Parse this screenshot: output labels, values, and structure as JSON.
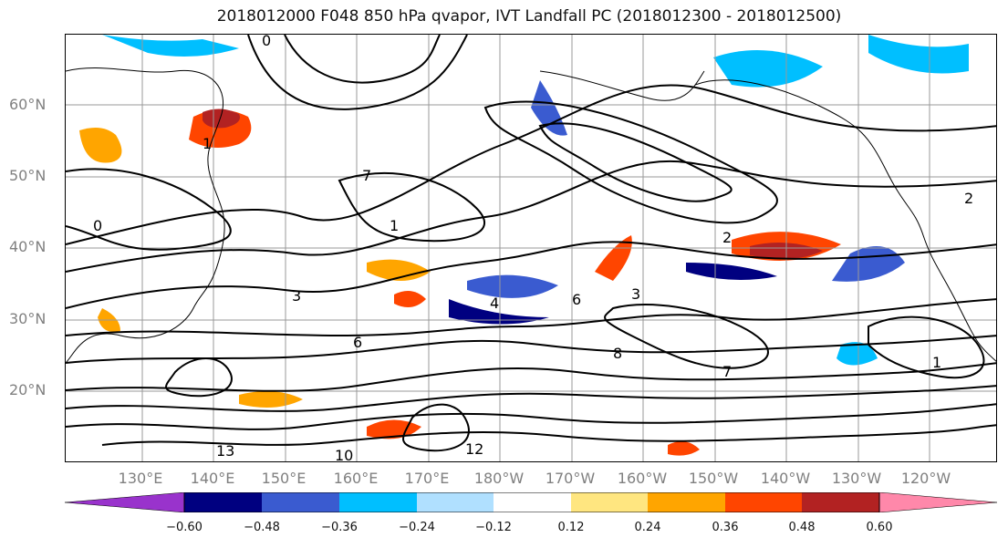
{
  "title": "2018012000 F048 850 hPa qvapor, IVT Landfall PC (2018012300 - 2018012500)",
  "latitude_labels": [
    "60°N",
    "50°N",
    "40°N",
    "30°N",
    "20°N"
  ],
  "longitude_labels": [
    "130°E",
    "140°E",
    "150°E",
    "160°E",
    "170°E",
    "180°W",
    "170°W",
    "160°W",
    "150°W",
    "140°W",
    "130°W",
    "120°W"
  ],
  "colorbar": {
    "tick_labels": [
      "−0.60",
      "−0.48",
      "−0.36",
      "−0.24",
      "−0.12",
      "0.12",
      "0.24",
      "0.36",
      "0.48",
      "0.60"
    ],
    "colors": [
      "#9933cc",
      "#000080",
      "#3a5bd0",
      "#00bfff",
      "#b0e0ff",
      "#ffffff",
      "#ffe680",
      "#ffa500",
      "#ff4500",
      "#b22222",
      "#ff88aa"
    ]
  },
  "contour_labels": [
    "0",
    "1",
    "1",
    "2",
    "3",
    "3",
    "4",
    "6",
    "6",
    "7",
    "8",
    "10",
    "12",
    "13",
    "1",
    "2",
    "0",
    "7"
  ]
}
